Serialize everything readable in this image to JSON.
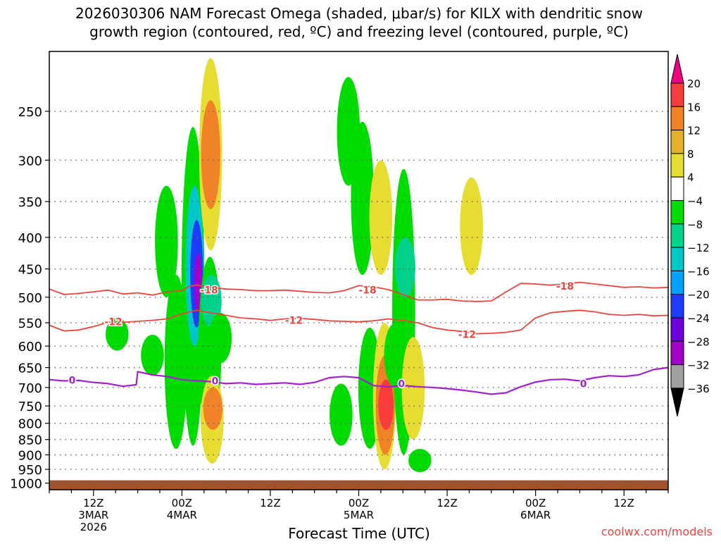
{
  "chart_data": {
    "type": "contour",
    "title_line1": "2026030306 NAM Forecast Omega (shaded, μbar/s) for KILX with dendritic snow",
    "title_line2": "growth region (contoured, red, ºC) and freezing level (contoured, purple, ºC)",
    "xlabel": "Forecast Time (UTC)",
    "watermark": "coolwx.com/models",
    "x_hours_from_start": [
      0,
      84
    ],
    "x_ticks": [
      {
        "hour": 6,
        "line1": "12Z",
        "line2": "3MAR",
        "line3": "2026"
      },
      {
        "hour": 18,
        "line1": "00Z",
        "line2": "4MAR",
        "line3": ""
      },
      {
        "hour": 30,
        "line1": "12Z",
        "line2": "",
        "line3": ""
      },
      {
        "hour": 42,
        "line1": "00Z",
        "line2": "5MAR",
        "line3": ""
      },
      {
        "hour": 54,
        "line1": "12Z",
        "line2": "",
        "line3": ""
      },
      {
        "hour": 66,
        "line1": "00Z",
        "line2": "6MAR",
        "line3": ""
      },
      {
        "hour": 78,
        "line1": "12Z",
        "line2": "",
        "line3": ""
      }
    ],
    "y_axis": {
      "scale": "log-pressure",
      "range_hpa": [
        200,
        1025
      ],
      "inverted": true
    },
    "y_ticks": [
      250,
      300,
      350,
      400,
      450,
      500,
      550,
      600,
      650,
      700,
      750,
      800,
      850,
      900,
      950,
      1000
    ],
    "grid": true,
    "colorbar": {
      "position": "right",
      "levels": [
        -36,
        -32,
        -28,
        -24,
        -20,
        -16,
        -12,
        -8,
        -4,
        4,
        8,
        12,
        16,
        20
      ],
      "colors": [
        "#000000",
        "#a0a0a0",
        "#a000c8",
        "#6e00dc",
        "#1e3cff",
        "#00a0ff",
        "#00c8c8",
        "#00d28c",
        "#00dc00",
        "#ffffff",
        "#e6dc32",
        "#e6af2d",
        "#f08228",
        "#fa3c3c",
        "#f00082"
      ]
    },
    "contour_labels": [
      {
        "hour": 21.7,
        "hpa": 487,
        "text": "-18",
        "color": "#e8453c"
      },
      {
        "hour": 43.2,
        "hpa": 487,
        "text": "-18",
        "color": "#e8453c"
      },
      {
        "hour": 70.0,
        "hpa": 480,
        "text": "-18",
        "color": "#e8453c"
      },
      {
        "hour": 8.7,
        "hpa": 548,
        "text": "-12",
        "color": "#e8453c"
      },
      {
        "hour": 33.2,
        "hpa": 545,
        "text": "-12",
        "color": "#e8453c"
      },
      {
        "hour": 56.7,
        "hpa": 574,
        "text": "-12",
        "color": "#e8453c"
      },
      {
        "hour": 3.1,
        "hpa": 681,
        "text": "0",
        "color": "#a020d0"
      },
      {
        "hour": 22.5,
        "hpa": 683,
        "text": "0",
        "color": "#a020d0"
      },
      {
        "hour": 47.8,
        "hpa": 690,
        "text": "0",
        "color": "#a020d0"
      },
      {
        "hour": 72.5,
        "hpa": 690,
        "text": "0",
        "color": "#a020d0"
      }
    ],
    "series": [
      {
        "level": -18,
        "hour": [
          0,
          2,
          4,
          6,
          8,
          10,
          12,
          14,
          16,
          18,
          19,
          20,
          22,
          24,
          26,
          28,
          30,
          32,
          34,
          36,
          38,
          40,
          42,
          44,
          46,
          48,
          50,
          52,
          54,
          56,
          58,
          60,
          62,
          64,
          66,
          68,
          70,
          72,
          74,
          76,
          78,
          80,
          82,
          84
        ],
        "hpa": [
          485,
          495,
          493,
          490,
          487,
          494,
          492,
          496,
          490,
          488,
          480,
          478,
          482,
          485,
          486,
          488,
          488,
          487,
          489,
          491,
          492,
          488,
          479,
          481,
          486,
          495,
          505,
          505,
          504,
          507,
          508,
          507,
          490,
          475,
          476,
          478,
          476,
          473,
          476,
          479,
          482,
          481,
          483,
          482
        ]
      },
      {
        "level": -12,
        "hour": [
          0,
          2,
          4,
          6,
          8,
          10,
          12,
          14,
          16,
          18,
          20,
          22,
          24,
          26,
          28,
          30,
          32,
          34,
          36,
          38,
          40,
          42,
          44,
          46,
          48,
          50,
          52,
          54,
          56,
          58,
          60,
          62,
          64,
          66,
          68,
          70,
          72,
          74,
          76,
          78,
          80,
          82,
          84
        ],
        "hpa": [
          555,
          567,
          565,
          558,
          549,
          549,
          547,
          545,
          542,
          532,
          525,
          530,
          535,
          540,
          542,
          545,
          542,
          541,
          543,
          546,
          547,
          548,
          546,
          542,
          545,
          550,
          560,
          565,
          568,
          573,
          572,
          570,
          565,
          540,
          530,
          527,
          525,
          528,
          533,
          535,
          533,
          536,
          535
        ]
      },
      {
        "level": 0,
        "hour": [
          0,
          2,
          4,
          6,
          8,
          10,
          11.8,
          12,
          14,
          16,
          18,
          20,
          22,
          24,
          26,
          28,
          30,
          32,
          34,
          36,
          38,
          40,
          42,
          44,
          46,
          48,
          50,
          52,
          54,
          56,
          58,
          60,
          62,
          64,
          66,
          68,
          70,
          72,
          74,
          76,
          78,
          80,
          82,
          84
        ],
        "hpa": [
          680,
          683,
          682,
          687,
          690,
          697,
          693,
          660,
          668,
          672,
          680,
          683,
          685,
          690,
          688,
          692,
          690,
          688,
          692,
          687,
          675,
          672,
          675,
          695,
          698,
          695,
          698,
          700,
          703,
          707,
          712,
          718,
          714,
          698,
          686,
          680,
          679,
          683,
          675,
          670,
          672,
          668,
          655,
          650
        ]
      }
    ],
    "omega_cells": [
      {
        "hour": 9.2,
        "hpa_top": 540,
        "hpa_bot": 610,
        "value": -6
      },
      {
        "hour": 14.0,
        "hpa_top": 575,
        "hpa_bot": 670,
        "value": -6
      },
      {
        "hour": 15.9,
        "hpa_top": 330,
        "hpa_bot": 500,
        "value": -6
      },
      {
        "hour": 17.2,
        "hpa_top": 460,
        "hpa_bot": 880,
        "value": -6
      },
      {
        "hour": 19.5,
        "hpa_top": 265,
        "hpa_bot": 870,
        "value": -6
      },
      {
        "hour": 19.7,
        "hpa_top": 330,
        "hpa_bot": 600,
        "value": -14
      },
      {
        "hour": 20.0,
        "hpa_top": 375,
        "hpa_bot": 560,
        "value": -22
      },
      {
        "hour": 20.2,
        "hpa_top": 425,
        "hpa_bot": 530,
        "value": -30
      },
      {
        "hour": 21.8,
        "hpa_top": 430,
        "hpa_bot": 840,
        "value": -6
      },
      {
        "hour": 22.0,
        "hpa_top": 460,
        "hpa_bot": 560,
        "value": -10
      },
      {
        "hour": 23.2,
        "hpa_top": 530,
        "hpa_bot": 640,
        "value": -6
      },
      {
        "hour": 21.9,
        "hpa_top": 205,
        "hpa_bot": 420,
        "value": 6
      },
      {
        "hour": 21.9,
        "hpa_top": 240,
        "hpa_bot": 360,
        "value": 12
      },
      {
        "hour": 22.1,
        "hpa_top": 670,
        "hpa_bot": 930,
        "value": 6
      },
      {
        "hour": 22.2,
        "hpa_top": 700,
        "hpa_bot": 820,
        "value": 12
      },
      {
        "hour": 40.6,
        "hpa_top": 220,
        "hpa_bot": 330,
        "value": -6
      },
      {
        "hour": 42.5,
        "hpa_top": 260,
        "hpa_bot": 460,
        "value": -6
      },
      {
        "hour": 39.6,
        "hpa_top": 690,
        "hpa_bot": 870,
        "value": -6
      },
      {
        "hour": 43.5,
        "hpa_top": 560,
        "hpa_bot": 880,
        "value": -6
      },
      {
        "hour": 45.0,
        "hpa_top": 300,
        "hpa_bot": 460,
        "value": 6
      },
      {
        "hour": 45.5,
        "hpa_top": 550,
        "hpa_bot": 950,
        "value": 6
      },
      {
        "hour": 45.6,
        "hpa_top": 620,
        "hpa_bot": 900,
        "value": 12
      },
      {
        "hour": 45.7,
        "hpa_top": 680,
        "hpa_bot": 820,
        "value": 18
      },
      {
        "hour": 47.0,
        "hpa_top": 550,
        "hpa_bot": 700,
        "value": -6
      },
      {
        "hour": 48.1,
        "hpa_top": 310,
        "hpa_bot": 900,
        "value": -6
      },
      {
        "hour": 48.3,
        "hpa_top": 400,
        "hpa_bot": 500,
        "value": -10
      },
      {
        "hour": 49.4,
        "hpa_top": 580,
        "hpa_bot": 850,
        "value": 6
      },
      {
        "hour": 50.3,
        "hpa_top": 880,
        "hpa_bot": 960,
        "value": -6
      },
      {
        "hour": 57.3,
        "hpa_top": 320,
        "hpa_bot": 460,
        "value": 6
      }
    ]
  }
}
